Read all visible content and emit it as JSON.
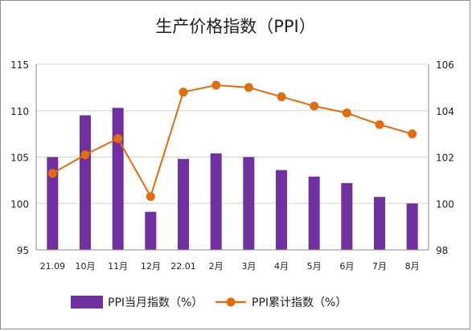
{
  "chart_data": {
    "type": "bar+line",
    "title": "生产价格指数（PPI）",
    "categories": [
      "21.09",
      "10月",
      "11月",
      "12月",
      "22.01",
      "2月",
      "3月",
      "4月",
      "5月",
      "6月",
      "7月",
      "8月"
    ],
    "series": [
      {
        "name": "PPI当月指数（%）",
        "type": "bar",
        "axis": "left",
        "color": "#7030a0",
        "values": [
          105.0,
          109.5,
          110.3,
          99.1,
          104.8,
          105.4,
          105.0,
          103.6,
          102.9,
          102.2,
          100.7,
          100.0
        ]
      },
      {
        "name": "PPI累计指数（%）",
        "type": "line",
        "axis": "right",
        "color": "#e46c0a",
        "values": [
          101.3,
          102.1,
          102.8,
          100.3,
          104.8,
          105.1,
          105.0,
          104.6,
          104.2,
          103.9,
          103.4,
          103.0
        ]
      }
    ],
    "y_left": {
      "min": 95,
      "max": 115,
      "ticks": [
        95,
        100,
        105,
        110,
        115
      ]
    },
    "y_right": {
      "min": 98,
      "max": 106,
      "ticks": [
        98,
        100,
        102,
        104,
        106
      ]
    },
    "grid": true,
    "legend": "bottom"
  }
}
